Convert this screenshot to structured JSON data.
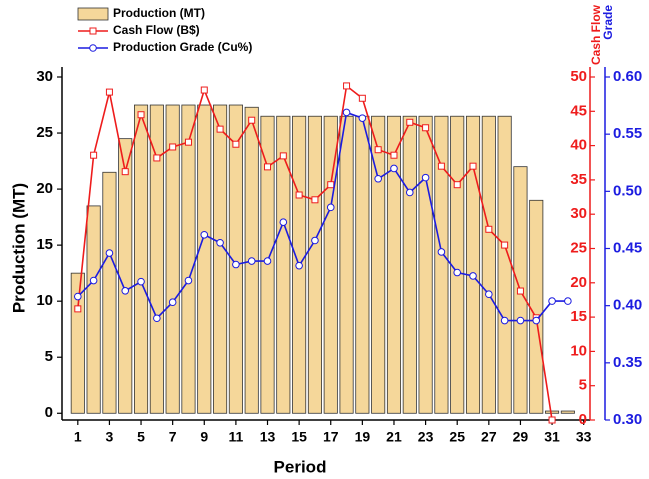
{
  "chart_data": {
    "type": "bar-line",
    "x_label": "Period",
    "y_label": "Production (MT)",
    "y2_label": "Cash Flow",
    "y3_label": "Grade",
    "x": [
      1,
      2,
      3,
      4,
      5,
      6,
      7,
      8,
      9,
      10,
      11,
      12,
      13,
      14,
      15,
      16,
      17,
      18,
      19,
      20,
      21,
      22,
      23,
      24,
      25,
      26,
      27,
      28,
      29,
      30,
      31,
      32
    ],
    "xlim": [
      0,
      33.4
    ],
    "xticks": [
      1,
      3,
      5,
      7,
      9,
      11,
      13,
      15,
      17,
      19,
      21,
      23,
      25,
      27,
      29,
      31,
      33
    ],
    "ylim": [
      -0.6,
      30
    ],
    "yticks": [
      0,
      5,
      10,
      15,
      20,
      25,
      30
    ],
    "y2lim": [
      0,
      50
    ],
    "y2ticks": [
      0,
      5,
      10,
      15,
      20,
      25,
      30,
      35,
      40,
      45,
      50
    ],
    "y3lim": [
      0.3,
      0.6
    ],
    "y3ticks": [
      {
        "value": 0.3,
        "label": "0.30"
      },
      {
        "value": 0.35,
        "label": "0.35"
      },
      {
        "value": 0.4,
        "label": "0.40"
      },
      {
        "value": 0.45,
        "label": "0.45"
      },
      {
        "value": 0.5,
        "label": "0.50"
      },
      {
        "value": 0.55,
        "label": "0.55"
      },
      {
        "value": 0.6,
        "label": "0.60"
      }
    ],
    "legend": "top-left",
    "series": [
      {
        "name": "Production (MT)",
        "type": "bar",
        "color": "#f5d79a",
        "axis": "y",
        "values": [
          12.5,
          18.5,
          21.5,
          24.5,
          27.5,
          27.5,
          27.5,
          27.5,
          27.5,
          27.5,
          27.5,
          27.3,
          26.5,
          26.5,
          26.5,
          26.5,
          26.5,
          26.5,
          26.5,
          26.5,
          26.5,
          26.5,
          26.5,
          26.5,
          26.5,
          26.5,
          26.5,
          26.5,
          22,
          19,
          0.2,
          0.2
        ]
      },
      {
        "name": "Cash Flow (B$)",
        "type": "line",
        "marker": "square",
        "color": "#ee1c1c",
        "axis": "y2",
        "values": [
          16.2,
          38.6,
          47.8,
          36.2,
          44.5,
          38.2,
          39.8,
          40.5,
          48.1,
          42.4,
          40.2,
          43.7,
          36.9,
          38.5,
          32.8,
          32.1,
          34.3,
          48.7,
          46.9,
          39.4,
          38.6,
          43.4,
          42.6,
          37.0,
          34.3,
          37.0,
          27.8,
          25.5,
          18.8,
          14.9,
          0,
          null
        ]
      },
      {
        "name": "Production Grade (Cu%)",
        "type": "line",
        "marker": "circle",
        "color": "#1c1ce0",
        "axis": "y3",
        "values": [
          0.408,
          0.422,
          0.446,
          0.413,
          0.421,
          0.389,
          0.403,
          0.422,
          0.462,
          0.455,
          0.436,
          0.439,
          0.439,
          0.473,
          0.435,
          0.457,
          0.486,
          0.569,
          0.564,
          0.511,
          0.52,
          0.499,
          0.512,
          0.447,
          0.429,
          0.426,
          0.41,
          0.387,
          0.387,
          0.387,
          0.404,
          0.404
        ]
      }
    ]
  }
}
